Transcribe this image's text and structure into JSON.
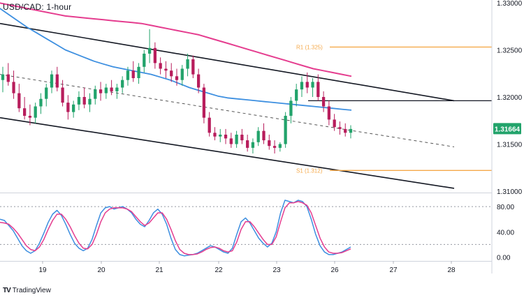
{
  "header": {
    "title": "USD/CAD: 1-hour"
  },
  "branding": {
    "logo_glyph": "TV",
    "name": "TradingView"
  },
  "chart_data": [
    {
      "type": "candlestick",
      "title": "USD/CAD: 1-hour",
      "x_ticks": [
        "19",
        "20",
        "21",
        "22",
        "23",
        "26",
        "27",
        "28"
      ],
      "y_ticks": [
        "1.33000",
        "1.32500",
        "1.32000",
        "1.31500",
        "1.31000"
      ],
      "ylim": [
        1.31,
        1.33
      ],
      "last_price": "1.31664",
      "candles": [
        [
          1.3218,
          1.3232,
          1.3205,
          1.3224
        ],
        [
          1.3224,
          1.3236,
          1.3212,
          1.3216
        ],
        [
          1.3216,
          1.3228,
          1.3198,
          1.3204
        ],
        [
          1.3204,
          1.3214,
          1.3184,
          1.3188
        ],
        [
          1.3188,
          1.32,
          1.3176,
          1.318
        ],
        [
          1.318,
          1.3192,
          1.317,
          1.3178
        ],
        [
          1.3178,
          1.3194,
          1.3172,
          1.319
        ],
        [
          1.319,
          1.3204,
          1.3182,
          1.3198
        ],
        [
          1.3198,
          1.3214,
          1.319,
          1.321
        ],
        [
          1.321,
          1.3228,
          1.3204,
          1.3224
        ],
        [
          1.3224,
          1.3232,
          1.3206,
          1.321
        ],
        [
          1.321,
          1.3218,
          1.319,
          1.3194
        ],
        [
          1.3194,
          1.3202,
          1.3176,
          1.3184
        ],
        [
          1.3184,
          1.3196,
          1.3178,
          1.3192
        ],
        [
          1.3192,
          1.3206,
          1.3186,
          1.32
        ],
        [
          1.32,
          1.321,
          1.3188,
          1.3192
        ],
        [
          1.3192,
          1.3204,
          1.3184,
          1.3198
        ],
        [
          1.3198,
          1.3212,
          1.3192,
          1.3208
        ],
        [
          1.3208,
          1.3216,
          1.3196,
          1.3204
        ],
        [
          1.3204,
          1.3214,
          1.3198,
          1.321
        ],
        [
          1.321,
          1.3218,
          1.3202,
          1.3206
        ],
        [
          1.3206,
          1.3214,
          1.3198,
          1.321
        ],
        [
          1.321,
          1.3222,
          1.3204,
          1.3218
        ],
        [
          1.3218,
          1.3232,
          1.3212,
          1.3228
        ],
        [
          1.3228,
          1.3238,
          1.3216,
          1.322
        ],
        [
          1.322,
          1.3236,
          1.3214,
          1.3232
        ],
        [
          1.3232,
          1.325,
          1.3226,
          1.3246
        ],
        [
          1.3246,
          1.3272,
          1.3236,
          1.3252
        ],
        [
          1.3252,
          1.3258,
          1.323,
          1.3236
        ],
        [
          1.3236,
          1.3242,
          1.3224,
          1.323
        ],
        [
          1.323,
          1.3238,
          1.322,
          1.3228
        ],
        [
          1.3228,
          1.3236,
          1.3216,
          1.3222
        ],
        [
          1.3222,
          1.323,
          1.3212,
          1.3218
        ],
        [
          1.3218,
          1.3234,
          1.3212,
          1.323
        ],
        [
          1.323,
          1.3246,
          1.3222,
          1.324
        ],
        [
          1.324,
          1.3244,
          1.322,
          1.3224
        ],
        [
          1.3224,
          1.323,
          1.3204,
          1.321
        ],
        [
          1.321,
          1.3214,
          1.3172,
          1.3178
        ],
        [
          1.3178,
          1.3184,
          1.3158,
          1.3162
        ],
        [
          1.3162,
          1.3168,
          1.3154,
          1.3158
        ],
        [
          1.3158,
          1.3166,
          1.3152,
          1.316
        ],
        [
          1.316,
          1.3166,
          1.315,
          1.3156
        ],
        [
          1.3156,
          1.3162,
          1.3146,
          1.315
        ],
        [
          1.315,
          1.3164,
          1.3146,
          1.316
        ],
        [
          1.316,
          1.3166,
          1.315,
          1.3154
        ],
        [
          1.3154,
          1.316,
          1.3142,
          1.3146
        ],
        [
          1.3146,
          1.3156,
          1.314,
          1.3152
        ],
        [
          1.3152,
          1.3168,
          1.3148,
          1.3164
        ],
        [
          1.3164,
          1.3172,
          1.315,
          1.3154
        ],
        [
          1.3154,
          1.316,
          1.3144,
          1.3148
        ],
        [
          1.3148,
          1.3154,
          1.314,
          1.3146
        ],
        [
          1.3146,
          1.3152,
          1.3142,
          1.315
        ],
        [
          1.315,
          1.3184,
          1.3146,
          1.318
        ],
        [
          1.318,
          1.32,
          1.3172,
          1.3196
        ],
        [
          1.3196,
          1.3214,
          1.319,
          1.3208
        ],
        [
          1.3208,
          1.3222,
          1.32,
          1.3216
        ],
        [
          1.3216,
          1.3226,
          1.3204,
          1.321
        ],
        [
          1.321,
          1.322,
          1.32,
          1.3216
        ],
        [
          1.3216,
          1.3224,
          1.3196,
          1.32
        ],
        [
          1.32,
          1.3206,
          1.3184,
          1.319
        ],
        [
          1.319,
          1.3196,
          1.317,
          1.3176
        ],
        [
          1.3176,
          1.3182,
          1.3164,
          1.3168
        ],
        [
          1.3168,
          1.3174,
          1.316,
          1.3166
        ],
        [
          1.3166,
          1.3172,
          1.3158,
          1.3162
        ],
        [
          1.3162,
          1.317,
          1.3156,
          1.3166
        ]
      ],
      "series": [
        {
          "values": [
            1.33,
            1.3298,
            1.3296,
            1.3294,
            1.3292,
            1.329,
            1.3288,
            1.3286,
            1.3285,
            1.3284,
            1.3283,
            1.3282,
            1.3281,
            1.328,
            1.3279,
            1.3278,
            1.3276,
            1.3274,
            1.3272,
            1.327,
            1.3268,
            1.3266,
            1.3263,
            1.326,
            1.3257,
            1.3254,
            1.3251,
            1.3248,
            1.3245,
            1.3242,
            1.3239,
            1.3236,
            1.3233,
            1.323,
            1.3228,
            1.3226,
            1.3224,
            1.3222
          ]
        },
        {
          "values": [
            1.3295,
            1.3288,
            1.3281,
            1.3274,
            1.3268,
            1.3262,
            1.3256,
            1.325,
            1.3246,
            1.3242,
            1.3238,
            1.3235,
            1.3232,
            1.323,
            1.3228,
            1.3226,
            1.3224,
            1.3221,
            1.3218,
            1.3214,
            1.321,
            1.3207,
            1.3204,
            1.3201,
            1.3199,
            1.3198,
            1.3197,
            1.3196,
            1.3195,
            1.3194,
            1.3193,
            1.3192,
            1.3191,
            1.319,
            1.3189,
            1.3188,
            1.3187,
            1.3186
          ]
        }
      ],
      "lines": {
        "channel_upper": [
          [
            1.3278,
            1.3196
          ]
        ],
        "channel_mid": [
          [
            1.3224,
            1.3147
          ]
        ],
        "channel_lower": [
          [
            1.3178,
            1.3103
          ]
        ],
        "flat_black": 1.3196
      },
      "levels": [
        {
          "label": "R1 (1.325)",
          "value": 1.3253,
          "color": "#f5a94a"
        },
        {
          "label": "S1 (1.312)",
          "value": 1.3122,
          "color": "#f5a94a"
        }
      ],
      "colors": {
        "up": "#22a36b",
        "down": "#b81d5c",
        "ema100": "#3d8fe0",
        "ema200": "#e53d8f",
        "price_tag": "#22a36b"
      }
    },
    {
      "type": "line",
      "title": "",
      "y_ticks": [
        "80.00",
        "40.00",
        "0.00"
      ],
      "ylim": [
        -5,
        100
      ],
      "levels": [
        80,
        20
      ],
      "series": [
        {
          "values": [
            60,
            58,
            50,
            42,
            30,
            18,
            10,
            6,
            10,
            22,
            38,
            55,
            68,
            74,
            66,
            52,
            36,
            22,
            14,
            10,
            14,
            28,
            50,
            70,
            78,
            80,
            76,
            78,
            80,
            76,
            70,
            60,
            52,
            48,
            58,
            70,
            76,
            68,
            52,
            30,
            12,
            4,
            2,
            3,
            4,
            6,
            10,
            14,
            18,
            16,
            12,
            8,
            6,
            14,
            36,
            56,
            62,
            54,
            42,
            30,
            22,
            16,
            22,
            40,
            70,
            90,
            88,
            86,
            90,
            88,
            80,
            60,
            36,
            18,
            8,
            4,
            4,
            6,
            8,
            12,
            16
          ]
        },
        {
          "values": [
            55,
            54,
            52,
            46,
            38,
            28,
            18,
            12,
            10,
            16,
            28,
            44,
            58,
            68,
            68,
            60,
            48,
            34,
            22,
            14,
            13,
            20,
            36,
            56,
            70,
            76,
            78,
            78,
            78,
            76,
            72,
            64,
            56,
            50,
            54,
            62,
            70,
            70,
            60,
            44,
            26,
            12,
            6,
            4,
            4,
            5,
            8,
            12,
            15,
            16,
            14,
            10,
            8,
            10,
            24,
            44,
            56,
            56,
            48,
            38,
            28,
            20,
            20,
            32,
            56,
            78,
            86,
            86,
            88,
            86,
            82,
            70,
            50,
            30,
            16,
            8,
            6,
            6,
            7,
            10,
            13
          ]
        }
      ],
      "colors": [
        "#3d8fe0",
        "#e53d8f"
      ]
    }
  ]
}
